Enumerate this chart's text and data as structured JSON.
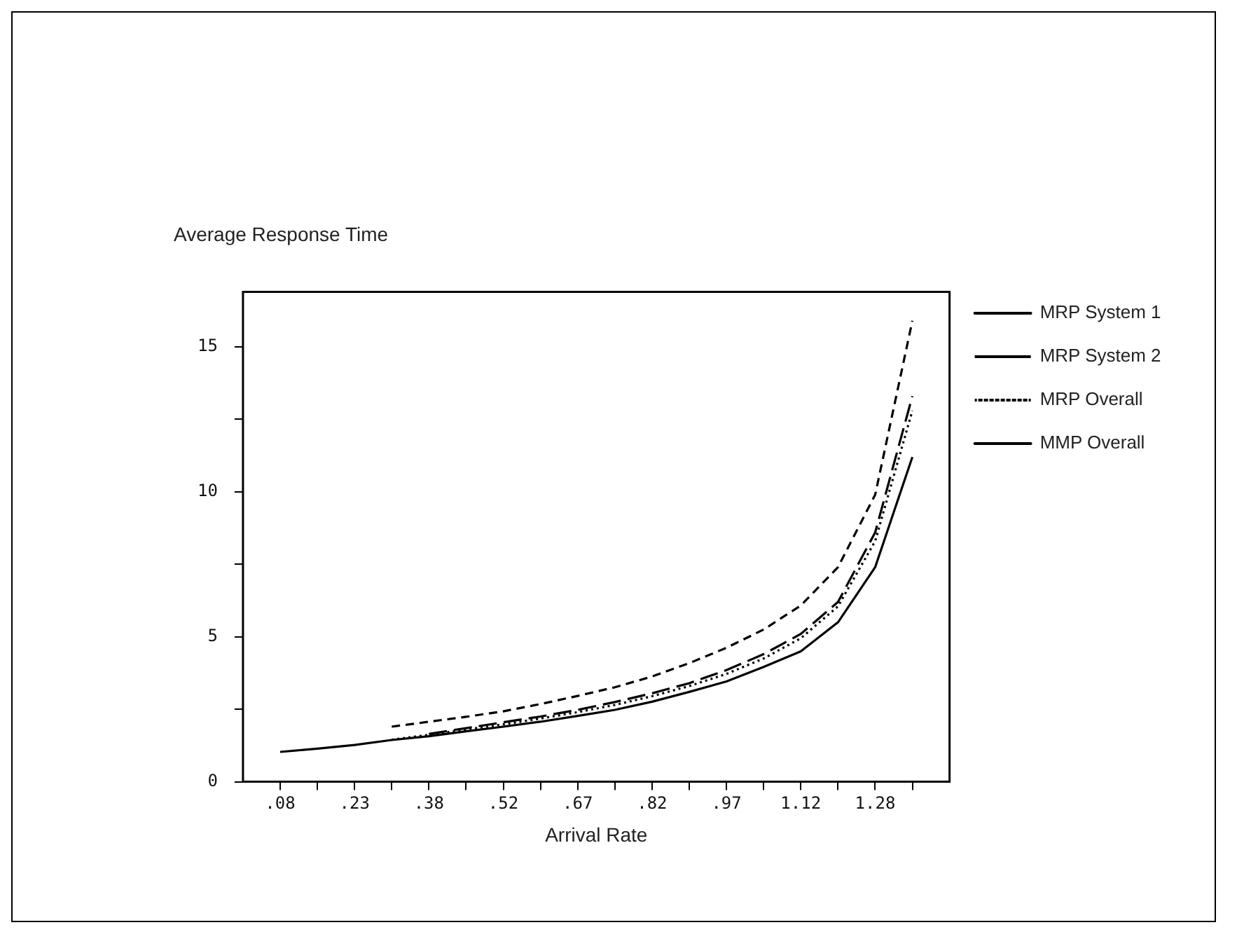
{
  "chart_data": {
    "type": "line",
    "xlabel": "Arrival Rate",
    "ylabel": "Average Response Time",
    "categories": [
      ".08",
      null,
      ".23",
      null,
      ".38",
      null,
      ".52",
      null,
      ".67",
      null,
      ".82",
      null,
      ".97",
      null,
      "1.12",
      null,
      "1.28",
      null
    ],
    "series": [
      {
        "name": "MRP System 1",
        "color": "#000000",
        "line_style": "solid",
        "values": [
          1.03,
          1.14,
          1.27,
          1.44,
          1.57,
          1.74,
          1.9,
          2.07,
          2.27,
          2.48,
          2.76,
          3.1,
          3.46,
          3.96,
          4.5,
          5.5,
          7.4,
          11.2
        ]
      },
      {
        "name": "MRP System 2",
        "color": "#000000",
        "line_style": "dashed",
        "values": [
          null,
          null,
          null,
          1.9,
          2.07,
          2.24,
          2.43,
          2.68,
          2.96,
          3.26,
          3.63,
          4.09,
          4.62,
          5.25,
          6.08,
          7.4,
          9.9,
          15.9
        ]
      },
      {
        "name": "MRP Overall",
        "color": "#000000",
        "line_style": "dotted",
        "values": [
          null,
          null,
          null,
          1.45,
          1.62,
          1.8,
          1.98,
          2.18,
          2.4,
          2.65,
          2.95,
          3.3,
          3.72,
          4.25,
          4.95,
          6.05,
          8.3,
          12.8
        ]
      },
      {
        "name": "MMP Overall",
        "color": "#000000",
        "line_style": "dashed",
        "values": [
          null,
          null,
          null,
          null,
          1.65,
          1.85,
          2.05,
          2.25,
          2.48,
          2.75,
          3.05,
          3.4,
          3.85,
          4.4,
          5.1,
          6.2,
          8.6,
          13.3
        ]
      }
    ],
    "ylim": [
      0,
      16.9
    ],
    "yticks": [
      0,
      {
        "value": 2.5,
        "label": null
      },
      5,
      {
        "value": 7.5,
        "label": null
      },
      10,
      {
        "value": 12.5,
        "label": null
      },
      15
    ],
    "grid": false,
    "legend": "right",
    "marker": "none"
  }
}
